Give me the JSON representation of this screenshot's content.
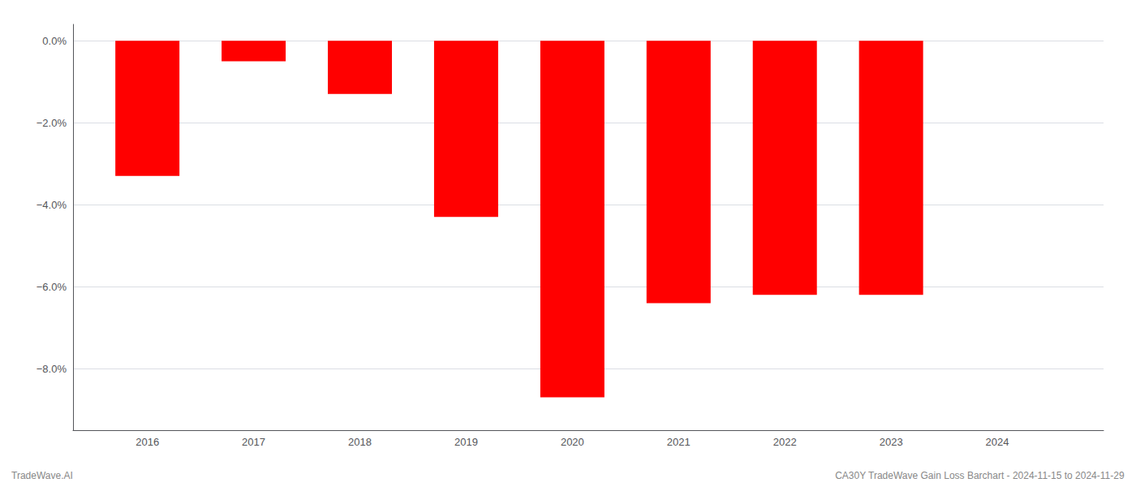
{
  "chart_data": {
    "type": "bar",
    "x": [
      2016,
      2017,
      2018,
      2019,
      2020,
      2021,
      2022,
      2023
    ],
    "values": [
      -3.3,
      -0.5,
      -1.3,
      -4.3,
      -8.7,
      -6.4,
      -6.2,
      -6.2
    ],
    "color": "#ff0000",
    "xlim": [
      2015.3,
      2025.0
    ],
    "xticks": [
      2016,
      2017,
      2018,
      2019,
      2020,
      2021,
      2022,
      2023,
      2024
    ],
    "ylim": [
      -9.5,
      0.4
    ],
    "yticks": [
      {
        "value": 0.0,
        "label": "0.0%"
      },
      {
        "value": -2.0,
        "label": "−2.0%"
      },
      {
        "value": -4.0,
        "label": "−4.0%"
      },
      {
        "value": -6.0,
        "label": "−6.0%"
      },
      {
        "value": -8.0,
        "label": "−8.0%"
      }
    ],
    "grid": true,
    "annotations": [
      "TradeWave.AI",
      "CA30Y TradeWave Gain Loss Barchart - 2024-11-15 to 2024-11-29"
    ]
  }
}
